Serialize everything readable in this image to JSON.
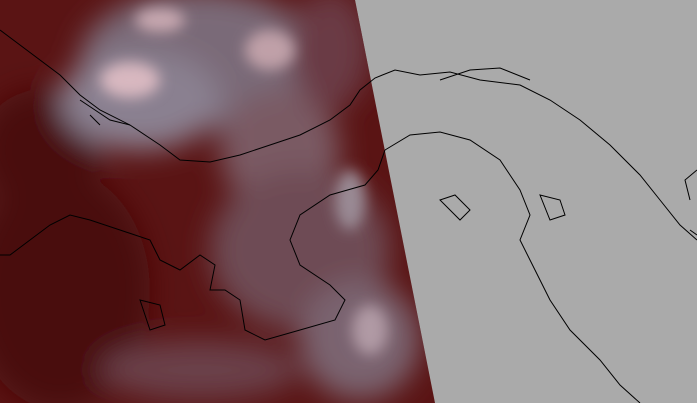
{
  "map": {
    "imagery": "satellite-false-color",
    "colors": {
      "surface": "#5a1414",
      "surface_dark": "#4a0c0c",
      "cloud": "#8a8a98",
      "cloud_bright": "#d8b8c0",
      "no_data": "#aaaaaa",
      "coastline": "#000000"
    }
  }
}
